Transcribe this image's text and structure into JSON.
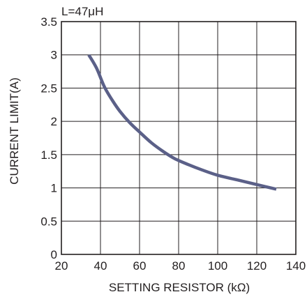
{
  "chart_data": {
    "type": "line",
    "annotation": "L=47μH",
    "xlabel": "SETTING RESISTOR (kΩ)",
    "ylabel": "CURRENT LIMIT(A)",
    "xlim": [
      20,
      140
    ],
    "ylim": [
      0,
      3.5
    ],
    "x_ticks": [
      "20",
      "40",
      "60",
      "80",
      "100",
      "120",
      "140"
    ],
    "y_ticks": [
      "0",
      "0.5",
      "1",
      "1.5",
      "2",
      "2.5",
      "3",
      "3.5"
    ],
    "grid": true,
    "series": [
      {
        "color": "#5b6088",
        "x": [
          34,
          38,
          42,
          46,
          50,
          55,
          60,
          66,
          72,
          78,
          85,
          92,
          100,
          110,
          120,
          130
        ],
        "y": [
          3.0,
          2.8,
          2.52,
          2.32,
          2.15,
          1.98,
          1.84,
          1.68,
          1.55,
          1.44,
          1.35,
          1.27,
          1.19,
          1.12,
          1.05,
          0.98
        ]
      }
    ]
  }
}
